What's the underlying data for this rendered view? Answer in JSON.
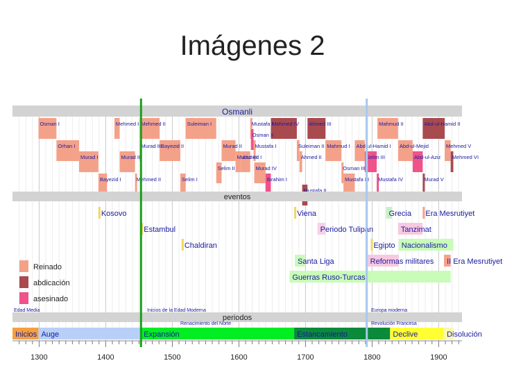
{
  "slide": {
    "title": "Imágenes 2"
  },
  "timeline": {
    "years": {
      "start": 1260,
      "end": 1935
    },
    "ticks": [
      1300,
      1400,
      1500,
      1600,
      1700,
      1800,
      1900
    ],
    "markers": {
      "green_line_year": 1453,
      "blue_line_year": 1792
    },
    "colors": {
      "reign": "#f4a18a",
      "abdication": "#a94a4e",
      "assassinated": "#f0528a",
      "band": "#d3d3d3",
      "name": "#1a1aa0"
    },
    "sections": {
      "top": "Osmanli",
      "events": "eventos",
      "periods": "periodos"
    },
    "sultans": [
      {
        "name": "Osman I",
        "start": 1299,
        "end": 1326,
        "row": 0,
        "type": "reign"
      },
      {
        "name": "Mehmed I",
        "start": 1413,
        "end": 1421,
        "row": 0,
        "type": "reign"
      },
      {
        "name": "Mehmed II",
        "start": 1451,
        "end": 1481,
        "row": 0,
        "type": "reign"
      },
      {
        "name": "Suleiman I",
        "start": 1520,
        "end": 1566,
        "row": 0,
        "type": "reign"
      },
      {
        "name": "Mustafa I",
        "start": 1617,
        "end": 1618,
        "row": 0,
        "type": "reign"
      },
      {
        "name": "Mehmed IV",
        "start": 1648,
        "end": 1687,
        "row": 0,
        "type": "abdication"
      },
      {
        "name": "Ahmed III",
        "start": 1703,
        "end": 1730,
        "row": 0,
        "type": "abdication"
      },
      {
        "name": "Mahmud II",
        "start": 1808,
        "end": 1839,
        "row": 0,
        "type": "reign"
      },
      {
        "name": "Abd-ul-Hamid II",
        "start": 1876,
        "end": 1909,
        "row": 0,
        "type": "abdication"
      },
      {
        "name": "Osman II",
        "start": 1618,
        "end": 1622,
        "row": 1,
        "type": "assassinated"
      },
      {
        "name": "Orhan I",
        "start": 1326,
        "end": 1360,
        "row": 2,
        "type": "reign"
      },
      {
        "name": "Murad III",
        "start": 1451,
        "end": 1451,
        "row": 2,
        "type": "reign"
      },
      {
        "name": "Bayezid II",
        "start": 1481,
        "end": 1512,
        "row": 2,
        "type": "reign"
      },
      {
        "name": "Murad II",
        "start": 1574,
        "end": 1595,
        "row": 2,
        "type": "reign"
      },
      {
        "name": "Mustafa I",
        "start": 1622,
        "end": 1623,
        "row": 2,
        "type": "reign"
      },
      {
        "name": "Suleiman II",
        "start": 1687,
        "end": 1691,
        "row": 2,
        "type": "reign"
      },
      {
        "name": "Mahmud I",
        "start": 1730,
        "end": 1754,
        "row": 2,
        "type": "reign"
      },
      {
        "name": "Abd-ul-Hamid I",
        "start": 1774,
        "end": 1789,
        "row": 2,
        "type": "reign"
      },
      {
        "name": "Abd-ul-Mejid",
        "start": 1839,
        "end": 1861,
        "row": 2,
        "type": "reign"
      },
      {
        "name": "Mehmed V",
        "start": 1909,
        "end": 1918,
        "row": 2,
        "type": "reign"
      },
      {
        "name": "Murad I",
        "start": 1360,
        "end": 1389,
        "row": 3,
        "type": "reign"
      },
      {
        "name": "Murad II",
        "start": 1421,
        "end": 1444,
        "row": 3,
        "type": "reign"
      },
      {
        "name": "Murad III",
        "start": 1595,
        "end": 1603,
        "row": 3,
        "type": "reign"
      },
      {
        "name": "Ahmed I",
        "start": 1603,
        "end": 1617,
        "row": 3,
        "type": "reign"
      },
      {
        "name": "Ahmed II",
        "start": 1691,
        "end": 1695,
        "row": 3,
        "type": "reign"
      },
      {
        "name": "Selim III",
        "start": 1789,
        "end": 1807,
        "row": 3,
        "type": "assassinated"
      },
      {
        "name": "Abd-ul-Aziz",
        "start": 1861,
        "end": 1876,
        "row": 3,
        "type": "assassinated"
      },
      {
        "name": "Mehmed VI",
        "start": 1918,
        "end": 1922,
        "row": 3,
        "type": "abdication"
      },
      {
        "name": "Selim II",
        "start": 1566,
        "end": 1574,
        "row": 4,
        "type": "reign"
      },
      {
        "name": "Murad IV",
        "start": 1623,
        "end": 1640,
        "row": 4,
        "type": "reign"
      },
      {
        "name": "Osman III",
        "start": 1754,
        "end": 1757,
        "row": 4,
        "type": "reign"
      },
      {
        "name": "Bayezid I",
        "start": 1389,
        "end": 1402,
        "row": 5,
        "type": "reign"
      },
      {
        "name": "Mehmed II",
        "start": 1444,
        "end": 1446,
        "row": 5,
        "type": "reign"
      },
      {
        "name": "Selim I",
        "start": 1512,
        "end": 1520,
        "row": 5,
        "type": "reign"
      },
      {
        "name": "Ibrahim I",
        "start": 1640,
        "end": 1648,
        "row": 5,
        "type": "assassinated"
      },
      {
        "name": "Mustafa III",
        "start": 1757,
        "end": 1774,
        "row": 5,
        "type": "reign"
      },
      {
        "name": "Mustafa IV",
        "start": 1807,
        "end": 1808,
        "row": 5,
        "type": "assassinated"
      },
      {
        "name": "Murad V",
        "start": 1876,
        "end": 1876,
        "row": 5,
        "type": "abdication"
      },
      {
        "name": "Mustafa II",
        "start": 1695,
        "end": 1703,
        "row": 6,
        "type": "abdication"
      }
    ],
    "events": [
      {
        "label": "Kosovo",
        "start": 1389,
        "end": 1389,
        "row": 0,
        "color": "#f0d860"
      },
      {
        "label": "Viena",
        "start": 1683,
        "end": 1683,
        "row": 0,
        "color": "#f0d860"
      },
      {
        "label": "Grecia",
        "start": 1821,
        "end": 1830,
        "row": 0,
        "color": "#c8f0c8"
      },
      {
        "label": "Era Mesrutiyet",
        "start": 1876,
        "end": 1878,
        "row": 0,
        "color": "#f4a18a"
      },
      {
        "label": "Estambul",
        "start": 1453,
        "end": 1453,
        "row": 1,
        "color": "#f0d860"
      },
      {
        "label": "Periodo Tulipán",
        "start": 1718,
        "end": 1730,
        "row": 1,
        "color": "#f8d0e8"
      },
      {
        "label": "Tanzimat",
        "start": 1839,
        "end": 1876,
        "row": 1,
        "color": "#f8c8e0"
      },
      {
        "label": "Chaldiran",
        "start": 1514,
        "end": 1514,
        "row": 2,
        "color": "#f0d860"
      },
      {
        "label": "Egipto",
        "start": 1798,
        "end": 1801,
        "row": 2,
        "color": "#f0d860"
      },
      {
        "label": "Nacionalismo",
        "start": 1840,
        "end": 1922,
        "row": 2,
        "color": "#c8fcb8"
      },
      {
        "label": "Santa Liga",
        "start": 1684,
        "end": 1699,
        "row": 3,
        "color": "#c8fcb8"
      },
      {
        "label": "Reformas militares",
        "start": 1793,
        "end": 1840,
        "row": 3,
        "color": "#f8c8e0"
      },
      {
        "label": "II Era Mesrutiyet",
        "start": 1908,
        "end": 1918,
        "row": 3,
        "color": "#f4a18a"
      },
      {
        "label": "Guerras Ruso-Turcas",
        "start": 1676,
        "end": 1918,
        "row": 4,
        "color": "#c8fcb8"
      }
    ],
    "legend": [
      {
        "label": "Reinado",
        "type": "reign"
      },
      {
        "label": "abdicación",
        "type": "abdication"
      },
      {
        "label": "asesinado",
        "type": "assassinated"
      }
    ],
    "ages": [
      {
        "label": "Edad Media",
        "row": 0
      },
      {
        "label": "Inicios de la Edad Moderna",
        "row": 0
      },
      {
        "label": "Renacimiento del Norte",
        "row": 1
      },
      {
        "label": "Europa moderna",
        "row": 0
      },
      {
        "label": "Revolución Francesa",
        "row": 1
      }
    ],
    "periods": [
      {
        "label": "Inicios",
        "start": 1260,
        "end": 1299,
        "color": "#f4a040"
      },
      {
        "label": "Auge",
        "start": 1299,
        "end": 1453,
        "color": "#b8d0f8"
      },
      {
        "label": "Expansión",
        "start": 1453,
        "end": 1683,
        "color": "#00ee22"
      },
      {
        "label": "Estancamiento",
        "start": 1683,
        "end": 1827,
        "color": "#0a8a3a"
      },
      {
        "label": "Declive",
        "start": 1827,
        "end": 1908,
        "color": "#ffff33"
      },
      {
        "label": "Disolución",
        "start": 1908,
        "end": 1922,
        "color": "#f8f8b0"
      }
    ]
  }
}
